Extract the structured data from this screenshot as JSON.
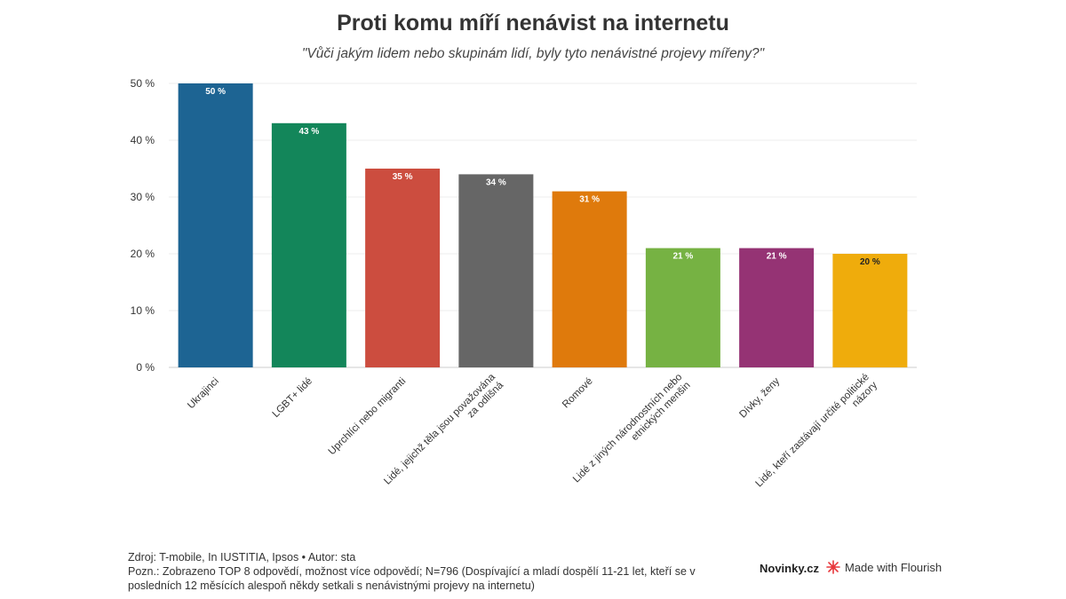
{
  "header": {
    "title": "Proti komu míří nenávist na internetu",
    "subtitle": "\"Vůči jakým lidem nebo skupinám lidí, byly tyto nenávistné projevy mířeny?\""
  },
  "chart_data": {
    "type": "bar",
    "categories": [
      [
        "Ukrajinci"
      ],
      [
        "LGBT+ lidé"
      ],
      [
        "Uprchlíci nebo migranti"
      ],
      [
        "Lidé, jejichž těla jsou považována",
        "za odlišná"
      ],
      [
        "Romové"
      ],
      [
        "Lidé z jiných národnostních nebo",
        "etnických menšin"
      ],
      [
        "Dívky,  ženy"
      ],
      [
        "Lidé, kteří zastávají určité politické",
        "názory"
      ]
    ],
    "values": [
      50,
      43,
      35,
      34,
      31,
      21,
      21,
      20
    ],
    "value_labels": [
      "50 %",
      "43 %",
      "35 %",
      "34 %",
      "31 %",
      "21 %",
      "21 %",
      "20 %"
    ],
    "colors": [
      "#1d6493",
      "#13865a",
      "#cc4d3f",
      "#666666",
      "#df7a0c",
      "#76b243",
      "#953374",
      "#efac0c"
    ],
    "label_colors": [
      "#ffffff",
      "#ffffff",
      "#ffffff",
      "#ffffff",
      "#ffffff",
      "#ffffff",
      "#ffffff",
      "#222222"
    ],
    "ylim": [
      0,
      50
    ],
    "yticks": [
      0,
      10,
      20,
      30,
      40,
      50
    ],
    "ytick_labels": [
      "0 %",
      "10 %",
      "20 %",
      "30 %",
      "40 %",
      "50 %"
    ],
    "grid": true,
    "legend": "none"
  },
  "footer": {
    "source": "Zdroj: T-mobile, In IUSTITIA, Ipsos • Autor: sta",
    "note": "Pozn.: Zobrazeno TOP 8 odpovědí, možnost více odpovědí; N=796 (Dospívající a mladí dospělí 11-21 let, kteří se v posledních 12 měsících alespoň někdy setkali s nenávistnými projevy na internetu)",
    "brand": "Novinky.cz",
    "flourish": "Made with Flourish",
    "flourish_icon": "flourish-logo-icon"
  }
}
